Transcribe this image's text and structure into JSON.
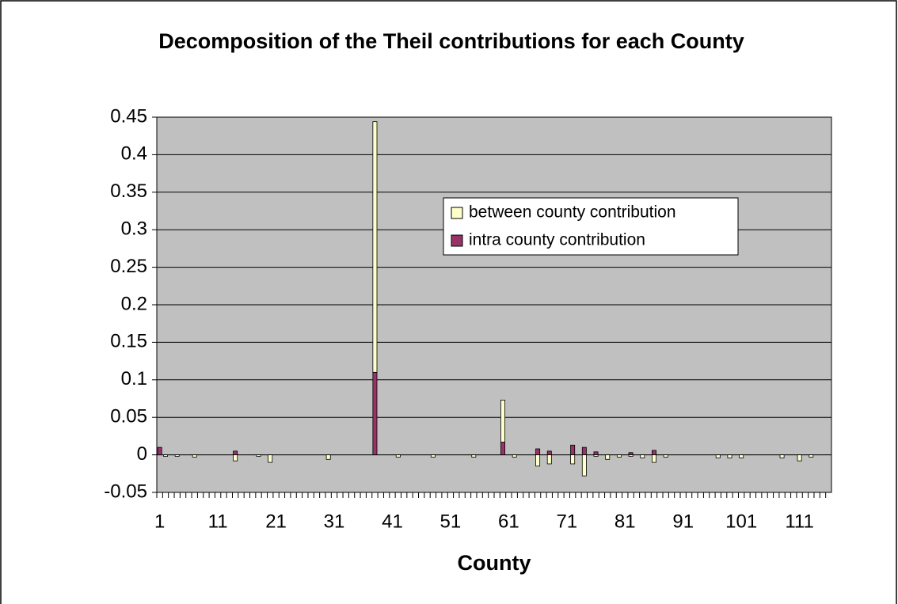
{
  "chart_data": {
    "type": "bar",
    "stacked": true,
    "title": "Decomposition of the Theil contributions for each County",
    "x_label": "County",
    "categories": [
      1,
      null,
      null,
      null,
      null,
      null,
      null,
      null,
      null,
      null,
      11,
      null,
      null,
      null,
      null,
      null,
      null,
      null,
      null,
      null,
      21,
      null,
      null,
      null,
      null,
      null,
      null,
      null,
      null,
      null,
      31,
      null,
      null,
      null,
      null,
      null,
      null,
      null,
      null,
      null,
      41,
      null,
      null,
      null,
      null,
      null,
      null,
      null,
      null,
      null,
      51,
      null,
      null,
      null,
      null,
      null,
      null,
      null,
      null,
      null,
      61,
      null,
      null,
      null,
      null,
      null,
      null,
      null,
      null,
      null,
      71,
      null,
      null,
      null,
      null,
      null,
      null,
      null,
      null,
      null,
      81,
      null,
      null,
      null,
      null,
      null,
      null,
      null,
      null,
      null,
      91,
      null,
      null,
      null,
      null,
      null,
      null,
      null,
      null,
      null,
      101,
      null,
      null,
      null,
      null,
      null,
      null,
      null,
      null,
      null,
      111,
      null,
      null,
      null,
      null,
      null
    ],
    "series": [
      {
        "name": "intra county contribution",
        "color": "#993366",
        "values": [
          0.01,
          0,
          0,
          0,
          0,
          0,
          0,
          0,
          0,
          0,
          0,
          0,
          0,
          0.005,
          0,
          0,
          0,
          0,
          0,
          0,
          0,
          0,
          0,
          0,
          0,
          0,
          0,
          0,
          0,
          0,
          0,
          0,
          0,
          0,
          0,
          0,
          0,
          0.11,
          0,
          0,
          0,
          0,
          0,
          0,
          0,
          0,
          0,
          0,
          0,
          0,
          0,
          0,
          0,
          0,
          0,
          0,
          0,
          0,
          0,
          0.017,
          0,
          0,
          0,
          0,
          0,
          0.008,
          0,
          0.005,
          0,
          0,
          0,
          0.013,
          0,
          0.01,
          0,
          0.004,
          0,
          0,
          0,
          0,
          0,
          0.003,
          0,
          0,
          0,
          0.006,
          0,
          0,
          0,
          0,
          0,
          0,
          0,
          0,
          0,
          0,
          0,
          0,
          0,
          0,
          0,
          0,
          0,
          0,
          0,
          0,
          0,
          0,
          0,
          0,
          0,
          0,
          0,
          0,
          0,
          0
        ]
      },
      {
        "name": "between county contribution",
        "color": "#ffffcc",
        "values": [
          0,
          -0.002,
          0,
          -0.002,
          0,
          0,
          -0.003,
          0,
          0,
          0,
          0,
          0,
          0,
          -0.008,
          0,
          0,
          0,
          -0.002,
          0,
          -0.01,
          0,
          0,
          0,
          0,
          0,
          0,
          0,
          0,
          0,
          -0.006,
          0,
          0,
          0,
          0,
          0,
          0,
          0,
          0.334,
          0,
          0,
          0,
          -0.003,
          0,
          0,
          0,
          0,
          0,
          -0.003,
          0,
          0,
          0,
          0,
          0,
          0,
          -0.003,
          0,
          0,
          0,
          0,
          0.056,
          0,
          -0.003,
          0,
          0,
          0,
          -0.015,
          0,
          -0.012,
          0,
          0,
          0,
          -0.012,
          0,
          -0.028,
          0,
          -0.002,
          0,
          -0.006,
          0,
          -0.003,
          0,
          -0.002,
          0,
          -0.004,
          0,
          -0.01,
          0,
          -0.003,
          0,
          0,
          0,
          0,
          0,
          0,
          0,
          0,
          -0.004,
          0,
          -0.004,
          0,
          -0.004,
          0,
          0,
          0,
          0,
          0,
          0,
          -0.004,
          0,
          0,
          -0.008,
          0,
          -0.003,
          0,
          0,
          0
        ]
      }
    ],
    "ylim": [
      -0.05,
      0.45
    ],
    "yticks": [
      -0.05,
      0,
      0.05,
      0.1,
      0.15,
      0.2,
      0.25,
      0.3,
      0.35,
      0.4,
      0.45
    ],
    "grid": true,
    "legend": "center",
    "plot_background": "#c0c0c0"
  }
}
